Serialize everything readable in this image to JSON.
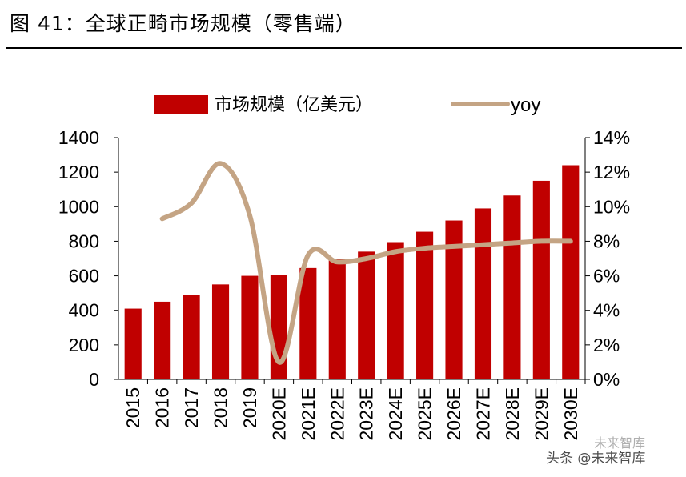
{
  "header": {
    "title": "图 41：全球正畸市场规模（零售端）"
  },
  "watermark": {
    "main": "头条 @未来智库",
    "faint": "未来智库"
  },
  "chart_data": {
    "type": "bar+line",
    "categories": [
      "2015",
      "2016",
      "2017",
      "2018",
      "2019",
      "2020E",
      "2021E",
      "2022E",
      "2023E",
      "2024E",
      "2025E",
      "2026E",
      "2027E",
      "2028E",
      "2029E",
      "2030E"
    ],
    "series": [
      {
        "name": "市场规模（亿美元）",
        "type": "bar",
        "axis": "left",
        "color": "#c00000",
        "values": [
          410,
          450,
          490,
          550,
          600,
          605,
          645,
          700,
          740,
          795,
          855,
          920,
          990,
          1065,
          1150,
          1240
        ]
      },
      {
        "name": "yoy",
        "type": "line",
        "axis": "right",
        "color": "#c4a484",
        "values": [
          null,
          9.3,
          10.2,
          12.5,
          9.5,
          1.0,
          7.2,
          6.8,
          7.0,
          7.4,
          7.6,
          7.7,
          7.8,
          7.9,
          8.0,
          8.0
        ]
      }
    ],
    "left_axis": {
      "ylim": [
        0,
        1400
      ],
      "ticks": [
        "0",
        "200",
        "400",
        "600",
        "800",
        "1000",
        "1200",
        "1400"
      ]
    },
    "right_axis": {
      "ylim": [
        0,
        14
      ],
      "ticks": [
        "0%",
        "2%",
        "4%",
        "6%",
        "8%",
        "10%",
        "12%",
        "14%"
      ]
    },
    "legend": {
      "position": "top",
      "bar_label": "市场规模（亿美元）",
      "line_label": "yoy"
    }
  }
}
